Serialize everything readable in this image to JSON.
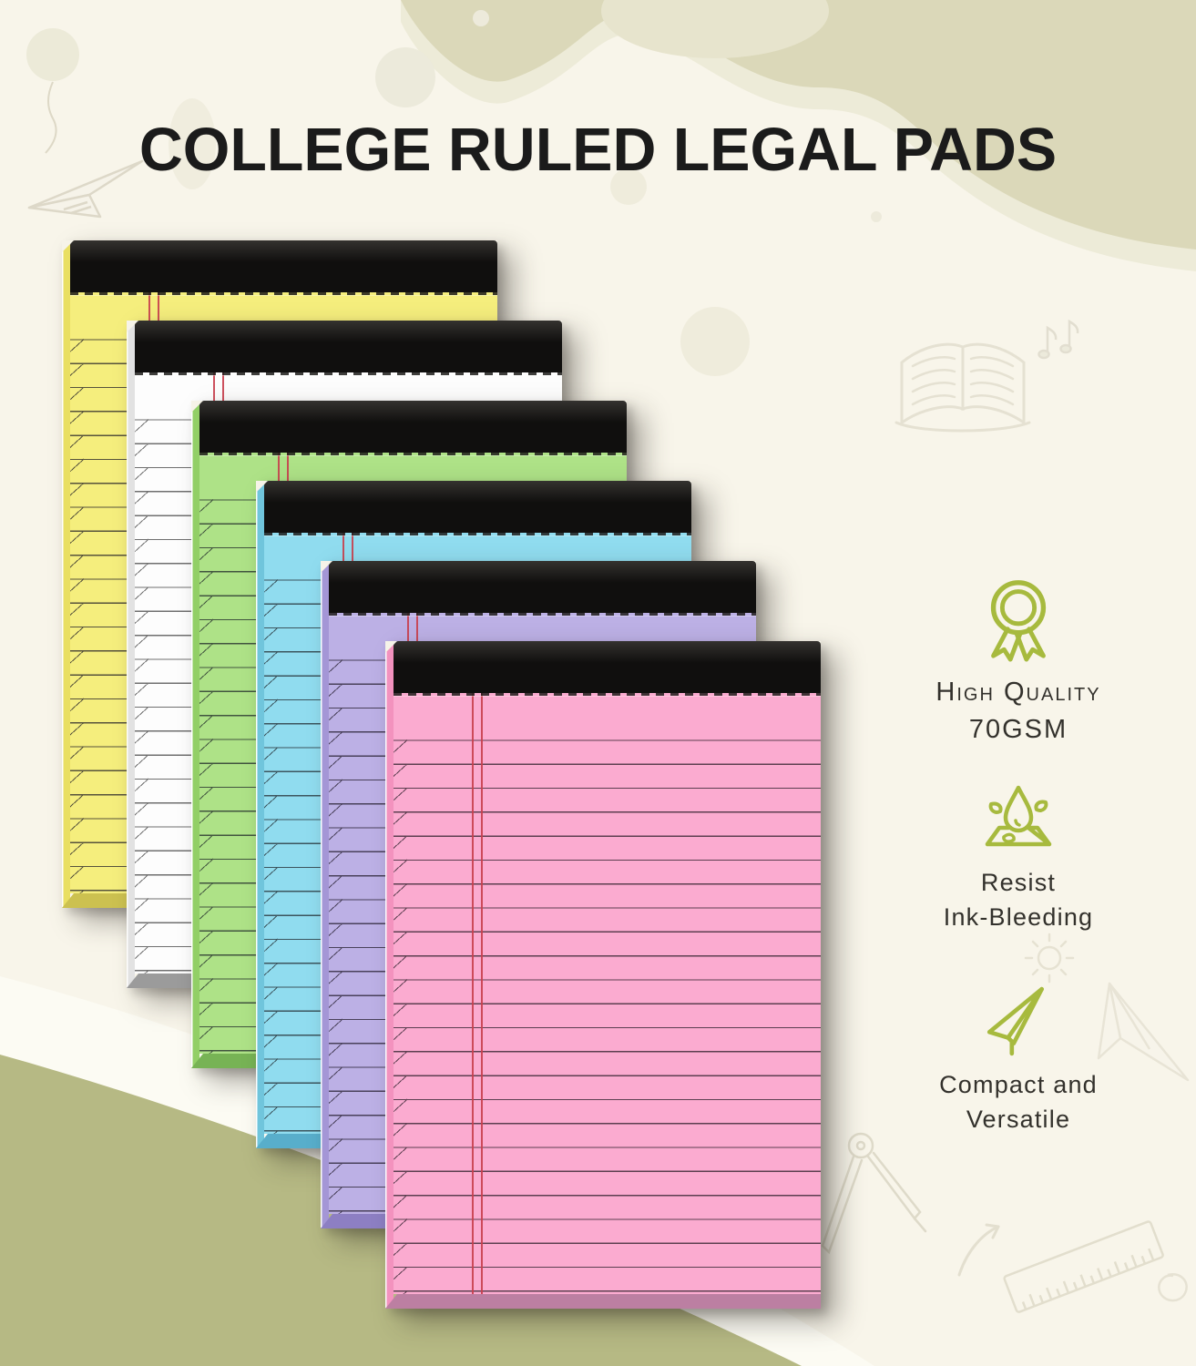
{
  "title": "COLLEGE RULED LEGAL PADS",
  "features": [
    {
      "icon": "award-medal-icon",
      "line1": "High Quality",
      "line2": "70GSM"
    },
    {
      "icon": "water-drop-icon",
      "line1": "Resist",
      "line2": "Ink-Bleeding"
    },
    {
      "icon": "paper-plane-icon",
      "line1": "Compact and",
      "line2": "Versatile"
    }
  ],
  "pads": [
    {
      "name": "yellow",
      "paper": "#f5ee7d",
      "side": "#e9df62",
      "bottom": "#ccc150",
      "line": "#56523c"
    },
    {
      "name": "white",
      "paper": "#fdfdfd",
      "side": "#e2e2e2",
      "bottom": "#9b9b9b",
      "line": "#6f6f6f"
    },
    {
      "name": "green",
      "paper": "#aee287",
      "side": "#92cf66",
      "bottom": "#77b355",
      "line": "#41543f"
    },
    {
      "name": "blue",
      "paper": "#90dcef",
      "side": "#70c5dc",
      "bottom": "#58aecb",
      "line": "#3c555e"
    },
    {
      "name": "purple",
      "paper": "#bcb0e5",
      "side": "#a496d6",
      "bottom": "#8d7fc3",
      "line": "#49415a"
    },
    {
      "name": "pink",
      "paper": "#fbabd0",
      "side": "#f392be",
      "bottom": "#bc7fa2",
      "line": "#5c3f50"
    }
  ],
  "colors": {
    "accent_green": "#a7ba3e",
    "text_dark": "#33312c",
    "title_color": "#1b1b1b",
    "background": "#f8f5ea",
    "wave_beige": "#dbd8b9",
    "wave_light": "#edebd8",
    "blob_olive": "#b6b984",
    "band_white": "#fcfbf3",
    "binding_black": "#100f0e",
    "margin_red": "#c9404e",
    "doodle_stroke": "#e3dfd0"
  },
  "background_doodles": [
    "balloon",
    "paper-plane",
    "open-book",
    "music-notes",
    "sun",
    "paper-plane",
    "drafting-compass",
    "curved-arrow",
    "ruler",
    "spiral"
  ]
}
